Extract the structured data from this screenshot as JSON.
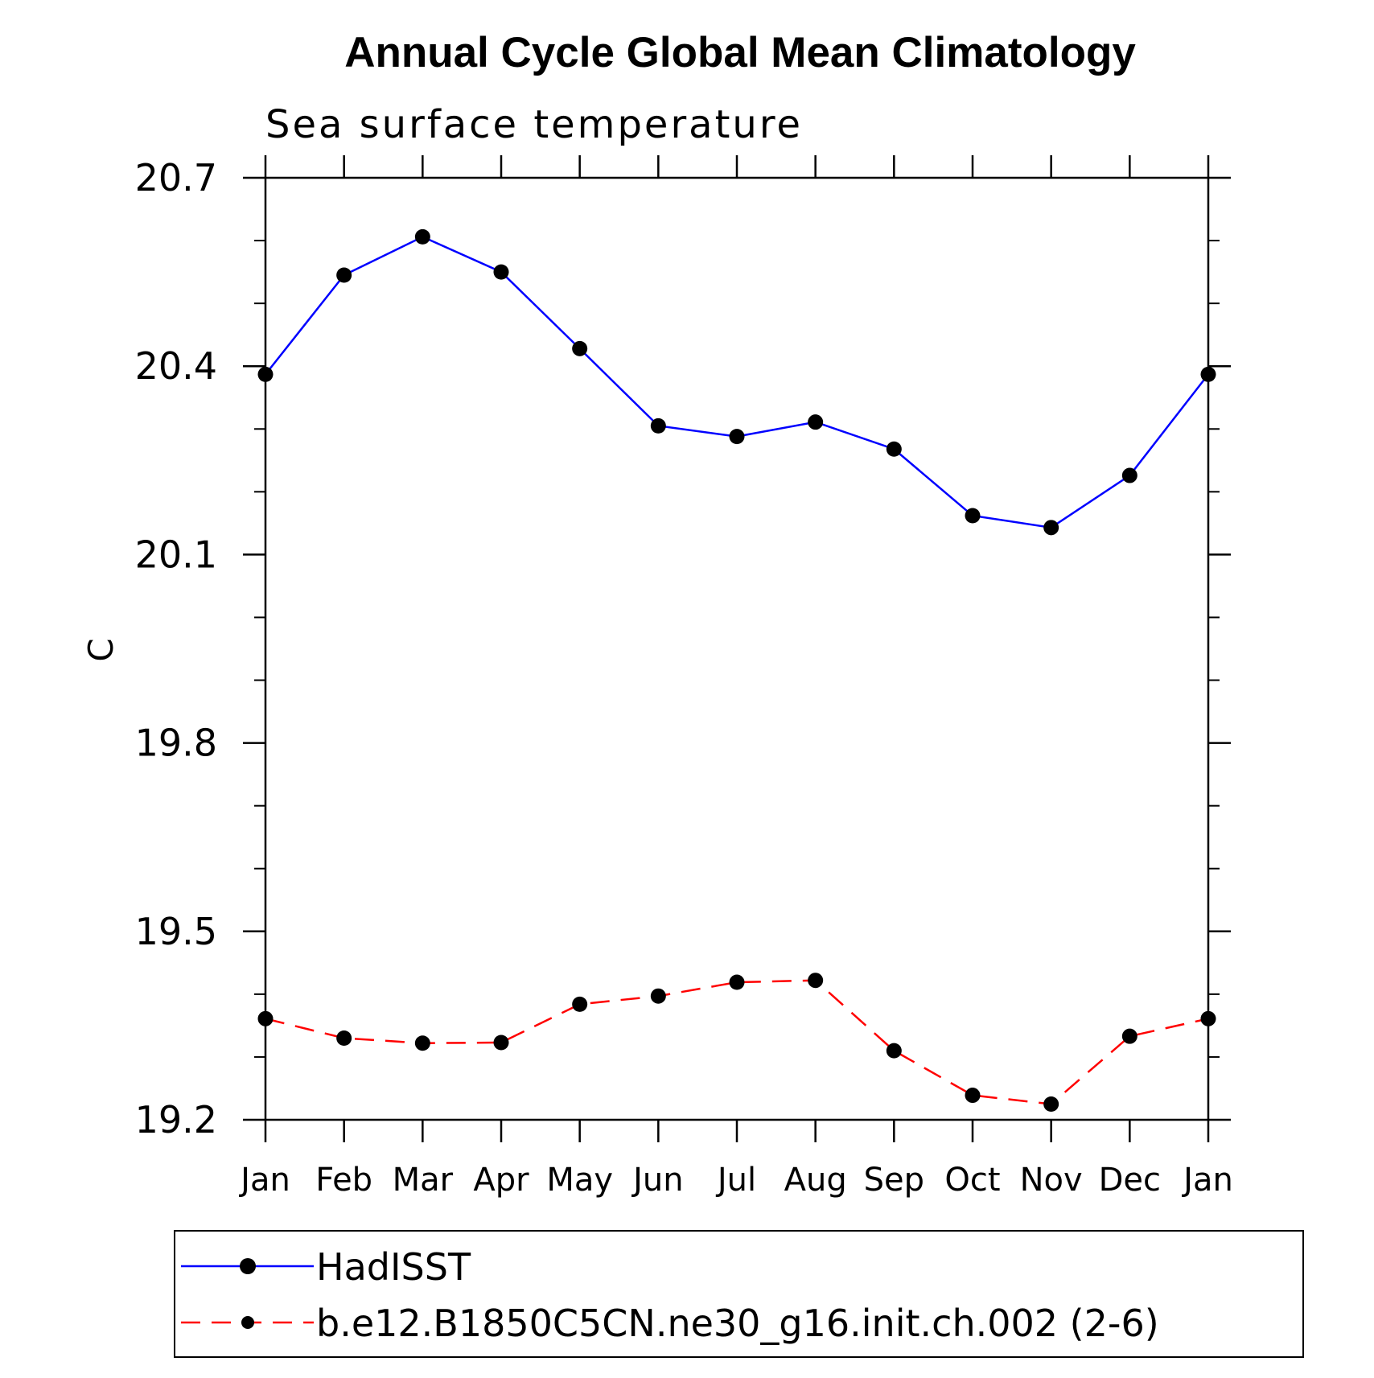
{
  "chart_data": {
    "type": "line",
    "title": "Annual Cycle Global Mean Climatology",
    "subtitle": "Sea surface temperature",
    "ylabel": "C",
    "xlabel": "",
    "categories": [
      "Jan",
      "Feb",
      "Mar",
      "Apr",
      "May",
      "Jun",
      "Jul",
      "Aug",
      "Sep",
      "Oct",
      "Nov",
      "Dec",
      "Jan"
    ],
    "ylim": [
      19.2,
      20.7
    ],
    "yticks": [
      "20.7",
      "20.4",
      "20.1",
      "19.8",
      "19.5",
      "19.2"
    ],
    "ytick_values": [
      20.7,
      20.4,
      20.1,
      19.8,
      19.5,
      19.2
    ],
    "y_minor_step": 0.1,
    "grid": false,
    "legend_position": "bottom",
    "series": [
      {
        "name": "HadISST",
        "color": "#0000ff",
        "dash": "solid",
        "marker": "filled-circle",
        "values": [
          20.387,
          20.545,
          20.606,
          20.55,
          20.428,
          20.305,
          20.288,
          20.311,
          20.268,
          20.162,
          20.143,
          20.226,
          20.387
        ]
      },
      {
        "name": "b.e12.B1850C5CN.ne30_g16.init.ch.002 (2-6)",
        "color": "#ff0000",
        "dash": "dashed",
        "marker": "filled-circle",
        "values": [
          19.361,
          19.33,
          19.322,
          19.323,
          19.384,
          19.397,
          19.419,
          19.422,
          19.31,
          19.239,
          19.225,
          19.333,
          19.361
        ]
      }
    ]
  }
}
